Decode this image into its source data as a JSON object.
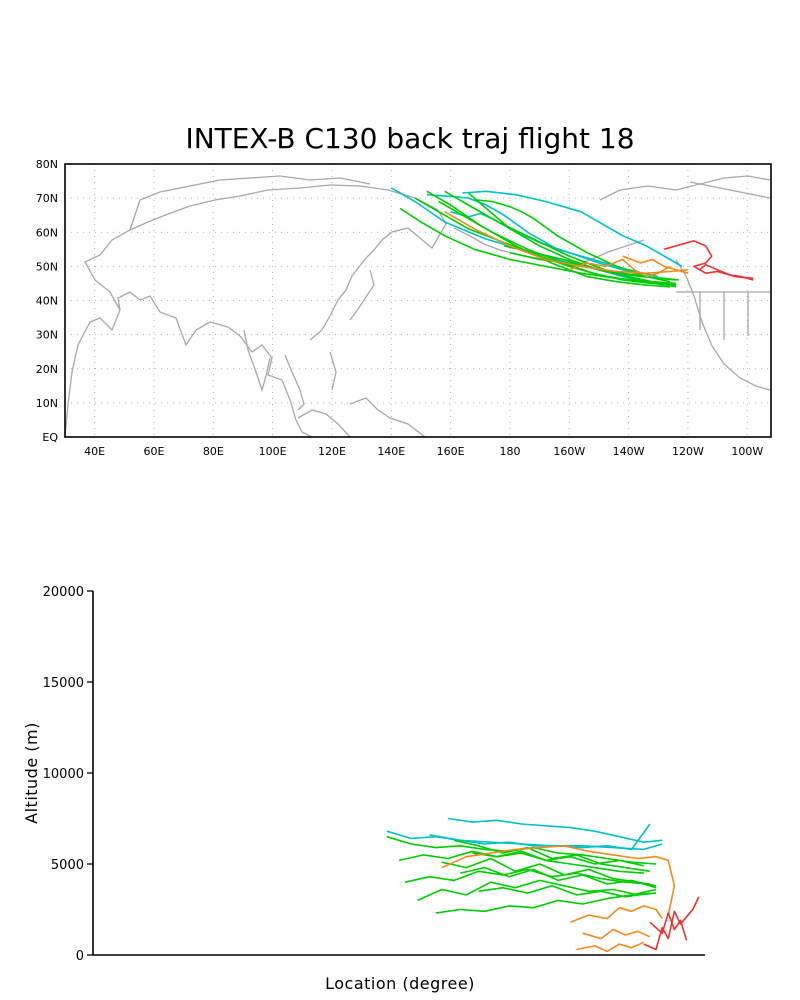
{
  "chart_data": [
    {
      "type": "line",
      "subtype": "map-trajectories",
      "title": "INTEX-B C130 back traj flight 18",
      "xlabel": "",
      "ylabel": "",
      "x_ticks": [
        "40E",
        "60E",
        "80E",
        "100E",
        "120E",
        "140E",
        "160E",
        "180",
        "160W",
        "140W",
        "120W",
        "100W"
      ],
      "y_ticks": [
        "EQ",
        "10N",
        "20N",
        "30N",
        "40N",
        "50N",
        "60N",
        "70N",
        "80N"
      ],
      "xlim": [
        30,
        268
      ],
      "ylim": [
        0,
        80
      ],
      "grid": true,
      "colors": {
        "green": "#00cc00",
        "cyan": "#00c0c8",
        "orange": "#f08a1c",
        "red": "#f03030",
        "coast": "#a8a8a8"
      },
      "series": [
        {
          "color": "cyan",
          "x": [
            140,
            148,
            158,
            172,
            188,
            200,
            210,
            218,
            226,
            232
          ],
          "y": [
            73,
            69,
            63,
            58,
            54,
            51,
            49,
            47,
            45.5,
            44.5
          ]
        },
        {
          "color": "cyan",
          "x": [
            152,
            160,
            166,
            172,
            178,
            186,
            196,
            208,
            220,
            230
          ],
          "y": [
            71,
            70.5,
            70,
            68,
            65,
            60,
            55,
            52,
            49,
            47
          ]
        },
        {
          "color": "cyan",
          "x": [
            160,
            166,
            170,
            174,
            180,
            190,
            200,
            210,
            222,
            232
          ],
          "y": [
            66,
            64.5,
            65.5,
            64,
            61,
            57,
            54,
            51,
            48,
            46
          ]
        },
        {
          "color": "cyan",
          "x": [
            164,
            172,
            182,
            192,
            204,
            212,
            218,
            226,
            234,
            238
          ],
          "y": [
            71.5,
            72,
            71,
            69,
            66,
            62,
            59,
            56,
            52,
            50
          ]
        },
        {
          "color": "green",
          "x": [
            152,
            160,
            170,
            182,
            194,
            206,
            216,
            226,
            234
          ],
          "y": [
            72,
            68,
            62,
            56,
            51,
            47,
            45.5,
            44.5,
            44
          ]
        },
        {
          "color": "green",
          "x": [
            148,
            156,
            166,
            178,
            190,
            200,
            210,
            220,
            230,
            236
          ],
          "y": [
            70,
            66,
            61,
            57,
            53,
            50,
            47.5,
            46,
            45,
            44.5
          ]
        },
        {
          "color": "green",
          "x": [
            156,
            164,
            174,
            186,
            198,
            208,
            218,
            228,
            236
          ],
          "y": [
            69,
            65,
            60,
            55,
            51,
            48,
            46,
            45,
            44.5
          ]
        },
        {
          "color": "green",
          "x": [
            158,
            166,
            176,
            188,
            200,
            212,
            222,
            230,
            236
          ],
          "y": [
            72,
            68,
            63,
            58,
            53,
            49,
            46.5,
            45,
            44
          ]
        },
        {
          "color": "green",
          "x": [
            166,
            172,
            180,
            190,
            200,
            210,
            220,
            228,
            234
          ],
          "y": [
            71.5,
            67,
            61,
            56,
            52,
            49,
            47,
            45.5,
            44.5
          ]
        },
        {
          "color": "green",
          "x": [
            143,
            150,
            158,
            168,
            180,
            192,
            204,
            216,
            228,
            236
          ],
          "y": [
            67,
            63,
            59,
            55,
            52,
            50,
            48,
            46.5,
            45.5,
            45
          ]
        },
        {
          "color": "green",
          "x": [
            168,
            174,
            180,
            184,
            188,
            196,
            206,
            216,
            226,
            234
          ],
          "y": [
            69.5,
            69,
            67.5,
            66,
            64,
            59,
            54,
            50,
            47,
            45.5
          ]
        },
        {
          "color": "green",
          "x": [
            178,
            188,
            198,
            206,
            214,
            222,
            230,
            236
          ],
          "y": [
            56,
            54,
            52,
            50,
            48.5,
            47.5,
            46.5,
            46
          ]
        },
        {
          "color": "green",
          "x": [
            180,
            190,
            200,
            208,
            216,
            224,
            232,
            237
          ],
          "y": [
            54,
            52,
            51,
            49.5,
            48,
            47,
            46.5,
            46
          ]
        },
        {
          "color": "orange",
          "x": [
            158,
            168,
            180,
            192,
            204,
            216,
            226,
            234,
            240
          ],
          "y": [
            66,
            61,
            56,
            52,
            50,
            48.5,
            48,
            48.5,
            49
          ]
        },
        {
          "color": "orange",
          "x": [
            200,
            206,
            212,
            218,
            222,
            226,
            230,
            234
          ],
          "y": [
            49,
            51,
            50,
            52,
            49,
            47,
            48,
            50
          ]
        },
        {
          "color": "orange",
          "x": [
            218,
            224,
            228,
            232,
            236,
            240
          ],
          "y": [
            53,
            51,
            52,
            50,
            49,
            48
          ]
        },
        {
          "color": "red",
          "x": [
            232,
            236,
            240,
            242,
            246,
            248,
            246,
            242,
            246,
            250,
            256,
            262
          ],
          "y": [
            55,
            56,
            57,
            57.5,
            56,
            53,
            51,
            50,
            48,
            48.5,
            47,
            46.5
          ]
        },
        {
          "color": "red",
          "x": [
            244,
            246,
            250,
            254,
            258,
            262
          ],
          "y": [
            49,
            50.5,
            49,
            47.5,
            47,
            46
          ]
        }
      ]
    },
    {
      "type": "line",
      "subtype": "altitude-trajectories",
      "title": "",
      "xlabel": "Location (degree)",
      "ylabel": "Altitude (m)",
      "y_ticks": [
        "0",
        "5000",
        "10000",
        "15000",
        "20000"
      ],
      "ylim": [
        0,
        20000
      ],
      "xlim": [
        0,
        1
      ],
      "grid": false,
      "series": [
        {
          "color": "cyan",
          "x": [
            0.58,
            0.62,
            0.66,
            0.7,
            0.74,
            0.78,
            0.82,
            0.86,
            0.9,
            0.93
          ],
          "y": [
            7500,
            7300,
            7400,
            7200,
            7100,
            7000,
            6800,
            6500,
            6200,
            6300
          ]
        },
        {
          "color": "cyan",
          "x": [
            0.48,
            0.52,
            0.56,
            0.6,
            0.64,
            0.68,
            0.72,
            0.76,
            0.8,
            0.84,
            0.88,
            0.91
          ],
          "y": [
            6800,
            6400,
            6500,
            6300,
            6100,
            6200,
            6000,
            6000,
            5900,
            6000,
            5800,
            7200
          ]
        },
        {
          "color": "cyan",
          "x": [
            0.55,
            0.6,
            0.65,
            0.7,
            0.75,
            0.8,
            0.85,
            0.9,
            0.93
          ],
          "y": [
            6600,
            6300,
            6200,
            6100,
            6000,
            6000,
            5900,
            5800,
            6100
          ]
        },
        {
          "color": "green",
          "x": [
            0.48,
            0.52,
            0.56,
            0.6,
            0.64,
            0.68,
            0.72,
            0.76,
            0.8,
            0.84,
            0.88,
            0.92
          ],
          "y": [
            6500,
            6100,
            5900,
            6000,
            5800,
            5700,
            5900,
            5600,
            5500,
            5300,
            5100,
            5000
          ]
        },
        {
          "color": "green",
          "x": [
            0.5,
            0.54,
            0.58,
            0.62,
            0.66,
            0.7,
            0.74,
            0.78,
            0.82,
            0.86,
            0.9
          ],
          "y": [
            5200,
            5500,
            5300,
            5700,
            5400,
            5600,
            5200,
            5000,
            4800,
            4600,
            4500
          ]
        },
        {
          "color": "green",
          "x": [
            0.51,
            0.55,
            0.59,
            0.63,
            0.67,
            0.71,
            0.75,
            0.79,
            0.83,
            0.87,
            0.91
          ],
          "y": [
            4000,
            4300,
            4100,
            4600,
            4400,
            4700,
            4300,
            4500,
            4200,
            4000,
            3900
          ]
        },
        {
          "color": "green",
          "x": [
            0.53,
            0.57,
            0.61,
            0.65,
            0.69,
            0.73,
            0.77,
            0.81,
            0.85,
            0.89,
            0.92
          ],
          "y": [
            3000,
            3600,
            3300,
            4000,
            3700,
            4100,
            3800,
            3500,
            3600,
            3300,
            3400
          ]
        },
        {
          "color": "green",
          "x": [
            0.56,
            0.6,
            0.64,
            0.68,
            0.72,
            0.76,
            0.8,
            0.84,
            0.88,
            0.92
          ],
          "y": [
            2300,
            2500,
            2400,
            2700,
            2600,
            3000,
            2800,
            3100,
            3300,
            3600
          ]
        },
        {
          "color": "green",
          "x": [
            0.57,
            0.61,
            0.65,
            0.69,
            0.73,
            0.77,
            0.81,
            0.85,
            0.89,
            0.92
          ],
          "y": [
            5100,
            4800,
            5300,
            4600,
            5000,
            4400,
            4700,
            4200,
            4000,
            3800
          ]
        },
        {
          "color": "green",
          "x": [
            0.59,
            0.63,
            0.67,
            0.71,
            0.75,
            0.79,
            0.83,
            0.87,
            0.91
          ],
          "y": [
            6300,
            6000,
            5600,
            5900,
            5300,
            5500,
            5000,
            4800,
            4600
          ]
        },
        {
          "color": "green",
          "x": [
            0.6,
            0.64,
            0.68,
            0.72,
            0.76,
            0.8,
            0.84,
            0.88,
            0.92
          ],
          "y": [
            4500,
            4800,
            4300,
            4700,
            4100,
            4400,
            3900,
            4100,
            3700
          ]
        },
        {
          "color": "green",
          "x": [
            0.62,
            0.66,
            0.7,
            0.74,
            0.78,
            0.82,
            0.86,
            0.9
          ],
          "y": [
            5600,
            5400,
            5700,
            5200,
            5400,
            5000,
            5200,
            4900
          ]
        },
        {
          "color": "green",
          "x": [
            0.63,
            0.67,
            0.71,
            0.75,
            0.79,
            0.83,
            0.87,
            0.91
          ],
          "y": [
            3500,
            3700,
            3400,
            3800,
            3300,
            3500,
            3200,
            3400
          ]
        },
        {
          "color": "orange",
          "x": [
            0.57,
            0.61,
            0.65,
            0.69,
            0.73,
            0.77,
            0.81,
            0.85,
            0.89,
            0.92,
            0.94,
            0.95,
            0.94
          ],
          "y": [
            4800,
            5400,
            5600,
            5800,
            5900,
            6000,
            5700,
            5500,
            5300,
            5400,
            5200,
            3800,
            2200
          ]
        },
        {
          "color": "orange",
          "x": [
            0.78,
            0.81,
            0.84,
            0.86,
            0.88,
            0.9,
            0.92,
            0.93
          ],
          "y": [
            1800,
            2200,
            2000,
            2600,
            2400,
            2700,
            2500,
            2000
          ]
        },
        {
          "color": "orange",
          "x": [
            0.8,
            0.83,
            0.85,
            0.87,
            0.89,
            0.91
          ],
          "y": [
            1200,
            900,
            1400,
            1100,
            1300,
            1000
          ]
        },
        {
          "color": "orange",
          "x": [
            0.79,
            0.82,
            0.84,
            0.86,
            0.88,
            0.9
          ],
          "y": [
            300,
            500,
            200,
            600,
            400,
            700
          ]
        },
        {
          "color": "red",
          "x": [
            0.9,
            0.92,
            0.93,
            0.94,
            0.95,
            0.96,
            0.97,
            0.98,
            0.99
          ],
          "y": [
            600,
            300,
            1500,
            900,
            2400,
            1700,
            2100,
            2500,
            3200
          ]
        },
        {
          "color": "red",
          "x": [
            0.91,
            0.93,
            0.94,
            0.95,
            0.96,
            0.97
          ],
          "y": [
            1800,
            1200,
            2300,
            1400,
            1900,
            800
          ]
        }
      ]
    }
  ]
}
